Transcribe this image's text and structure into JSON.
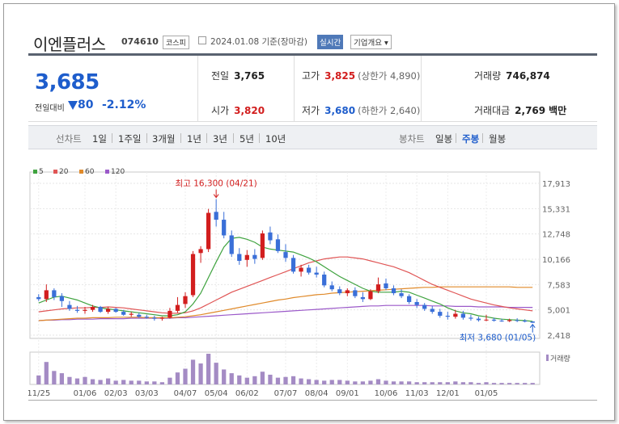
{
  "header": {
    "name": "이엔플러스",
    "code": "074610",
    "market": "코스피",
    "date": "2024.01.08 기준(장마감)",
    "live_label": "실시간",
    "company_label": "기업개요 ▾"
  },
  "summary": {
    "price": "3,685",
    "prev_label": "전일대비",
    "change": "80",
    "change_pct": "-2.12%",
    "prev_close_label": "전일",
    "prev_close": "3,765",
    "high_label": "고가",
    "high": "3,825",
    "upper_limit": "(상한가 4,890)",
    "volume_label": "거래량",
    "volume": "746,874",
    "open_label": "시가",
    "open": "3,820",
    "low_label": "저가",
    "low": "3,680",
    "lower_limit": "(하한가 2,640)",
    "amount_label": "거래대금",
    "amount": "2,769",
    "amount_unit": "백만"
  },
  "tabs": {
    "line_label": "선차트",
    "line_items": [
      "1일",
      "1주일",
      "3개월",
      "1년",
      "3년",
      "5년",
      "10년"
    ],
    "candle_label": "봉차트",
    "candle_items": [
      "일봉",
      "주봉",
      "월봉"
    ],
    "selected_candle": "주봉"
  },
  "colors": {
    "up": "#d21e1e",
    "down": "#3a6fd8",
    "ma5": "#3fa33f",
    "ma20": "#e05555",
    "ma60": "#e08a2a",
    "ma120": "#9b59c9",
    "volume": "#a48bc4"
  },
  "chart_data": {
    "type": "candlestick",
    "legend": [
      {
        "name": "5",
        "color": "#3fa33f"
      },
      {
        "name": "20",
        "color": "#e05555"
      },
      {
        "name": "60",
        "color": "#e08a2a"
      },
      {
        "name": "120",
        "color": "#9b59c9"
      }
    ],
    "y_ticks": [
      "17,913",
      "15,331",
      "12,748",
      "10,166",
      "7,583",
      "5,001",
      "2,418"
    ],
    "ylim": [
      2418,
      17913
    ],
    "x_ticks": [
      "11/25",
      "01/06",
      "02/03",
      "03/03",
      "04/07",
      "05/04",
      "06/02",
      "07/07",
      "08/04",
      "09/01",
      "10/06",
      "11/03",
      "12/01",
      "01/05"
    ],
    "annotation_high": "최고 16,300 (04/21)",
    "annotation_low": "최저 3,680 (01/05)",
    "volume_label": "거래량",
    "candles": [
      [
        6300,
        6600,
        5900,
        6100
      ],
      [
        6100,
        7600,
        5800,
        7000
      ],
      [
        7000,
        7200,
        6000,
        6300
      ],
      [
        6400,
        6700,
        5300,
        5900
      ],
      [
        5500,
        5900,
        4900,
        5100
      ],
      [
        5000,
        5400,
        4700,
        4900
      ],
      [
        4900,
        5300,
        4600,
        5000
      ],
      [
        5000,
        5500,
        4800,
        5300
      ],
      [
        5300,
        5400,
        4700,
        4800
      ],
      [
        4800,
        5300,
        4600,
        5100
      ],
      [
        5100,
        5200,
        4700,
        4800
      ],
      [
        4800,
        5000,
        4400,
        4500
      ],
      [
        4500,
        4800,
        4300,
        4600
      ],
      [
        4500,
        4700,
        4200,
        4300
      ],
      [
        4300,
        4500,
        4100,
        4200
      ],
      [
        4200,
        4400,
        3900,
        4100
      ],
      [
        4100,
        4300,
        3900,
        4200
      ],
      [
        4200,
        5200,
        4100,
        4900
      ],
      [
        4900,
        6300,
        4700,
        5500
      ],
      [
        5600,
        6800,
        5200,
        6400
      ],
      [
        6500,
        11000,
        6300,
        10700
      ],
      [
        10800,
        11500,
        9800,
        11200
      ],
      [
        11200,
        15300,
        10900,
        14900
      ],
      [
        15000,
        16300,
        13500,
        14200
      ],
      [
        14200,
        15000,
        12300,
        12600
      ],
      [
        12600,
        13100,
        10400,
        10700
      ],
      [
        10700,
        11300,
        9600,
        10000
      ],
      [
        10100,
        11100,
        9400,
        10600
      ],
      [
        10600,
        11200,
        9700,
        10200
      ],
      [
        10300,
        13100,
        10100,
        12800
      ],
      [
        12900,
        13500,
        11700,
        12100
      ],
      [
        12200,
        12700,
        10800,
        11000
      ],
      [
        10900,
        11700,
        9900,
        10300
      ],
      [
        10300,
        10600,
        8700,
        8900
      ],
      [
        8900,
        9600,
        8400,
        9300
      ],
      [
        9300,
        9600,
        8600,
        8800
      ],
      [
        8800,
        9400,
        8300,
        8600
      ],
      [
        8600,
        8900,
        7300,
        7500
      ],
      [
        7500,
        7900,
        6900,
        7100
      ],
      [
        7100,
        7400,
        6500,
        6700
      ],
      [
        6700,
        7200,
        6400,
        7000
      ],
      [
        7000,
        7300,
        6200,
        6400
      ],
      [
        6300,
        6800,
        5800,
        6100
      ],
      [
        6100,
        7100,
        6000,
        6900
      ],
      [
        6900,
        8300,
        6700,
        7600
      ],
      [
        7700,
        8200,
        7000,
        7200
      ],
      [
        7200,
        7500,
        6500,
        6700
      ],
      [
        6700,
        7100,
        6200,
        6400
      ],
      [
        6400,
        6600,
        5600,
        5800
      ],
      [
        5800,
        6100,
        5200,
        5500
      ],
      [
        5500,
        5700,
        4900,
        5100
      ],
      [
        5100,
        5400,
        4600,
        4800
      ],
      [
        4800,
        5100,
        4200,
        4400
      ],
      [
        4400,
        4800,
        4000,
        4300
      ],
      [
        4300,
        5000,
        4100,
        4600
      ],
      [
        4600,
        4900,
        4000,
        4200
      ],
      [
        4200,
        4500,
        3900,
        4100
      ],
      [
        4100,
        4300,
        3800,
        3950
      ],
      [
        3950,
        4500,
        3850,
        4000
      ],
      [
        4000,
        4200,
        3800,
        3900
      ],
      [
        3900,
        4100,
        3780,
        3850
      ],
      [
        3850,
        4100,
        3760,
        3950
      ],
      [
        3950,
        4150,
        3750,
        3900
      ],
      [
        3900,
        4050,
        3720,
        3800
      ],
      [
        3820,
        3825,
        3680,
        3685
      ]
    ],
    "volume": [
      1.2,
      3.0,
      1.8,
      1.5,
      1.0,
      0.8,
      1.0,
      0.7,
      0.6,
      0.8,
      0.5,
      0.6,
      0.5,
      0.5,
      0.4,
      0.4,
      0.3,
      0.9,
      1.6,
      2.1,
      3.3,
      2.8,
      4.1,
      2.9,
      2.0,
      1.5,
      1.2,
      0.9,
      1.1,
      1.7,
      1.3,
      0.9,
      1.0,
      1.1,
      0.8,
      0.7,
      0.6,
      0.5,
      0.6,
      0.6,
      0.5,
      0.4,
      0.4,
      0.5,
      0.7,
      0.5,
      0.4,
      0.4,
      0.4,
      0.3,
      0.3,
      0.3,
      0.3,
      0.3,
      0.4,
      0.3,
      0.3,
      0.2,
      0.3,
      0.2,
      0.2,
      0.2,
      0.2,
      0.2,
      0.2
    ],
    "ma5": [
      5700,
      6000,
      6300,
      6400,
      6200,
      6000,
      5700,
      5400,
      5200,
      5100,
      5000,
      4900,
      4800,
      4700,
      4600,
      4500,
      4400,
      4400,
      4500,
      4800,
      5600,
      6700,
      8300,
      9900,
      11400,
      12300,
      12400,
      12200,
      11900,
      11400,
      11200,
      11100,
      11000,
      10900,
      10600,
      10300,
      9900,
      9400,
      8900,
      8400,
      8000,
      7600,
      7200,
      6900,
      6800,
      6800,
      6800,
      6900,
      6800,
      6500,
      6200,
      5900,
      5600,
      5200,
      4900,
      4700,
      4600,
      4400,
      4300,
      4150,
      4050,
      4000,
      3950,
      3900,
      3830
    ],
    "ma20": [
      4800,
      4900,
      5000,
      5100,
      5150,
      5200,
      5200,
      5250,
      5250,
      5300,
      5250,
      5200,
      5100,
      5000,
      4900,
      4800,
      4700,
      4650,
      4650,
      4700,
      4900,
      5200,
      5600,
      6000,
      6400,
      6800,
      7100,
      7400,
      7700,
      8000,
      8300,
      8600,
      8900,
      9200,
      9500,
      9800,
      10000,
      10200,
      10300,
      10400,
      10400,
      10300,
      10200,
      10000,
      9800,
      9600,
      9400,
      9100,
      8800,
      8400,
      8000,
      7600,
      7300,
      7000,
      6700,
      6400,
      6100,
      5900,
      5700,
      5500,
      5350,
      5200,
      5100,
      5000,
      4900
    ],
    "ma60": [
      3900,
      3950,
      4000,
      4050,
      4100,
      4150,
      4150,
      4200,
      4200,
      4200,
      4250,
      4250,
      4250,
      4250,
      4200,
      4200,
      4200,
      4200,
      4250,
      4300,
      4400,
      4500,
      4650,
      4800,
      4950,
      5100,
      5250,
      5400,
      5550,
      5700,
      5850,
      6000,
      6100,
      6250,
      6350,
      6450,
      6550,
      6600,
      6700,
      6750,
      6800,
      6850,
      6900,
      6950,
      7000,
      7050,
      7100,
      7150,
      7200,
      7250,
      7300,
      7300,
      7350,
      7350,
      7350,
      7350,
      7350,
      7350,
      7350,
      7350,
      7350,
      7350,
      7300,
      7300,
      7300
    ],
    "ma120": [
      3900,
      3950,
      3950,
      4000,
      4000,
      4050,
      4050,
      4050,
      4100,
      4100,
      4100,
      4100,
      4150,
      4150,
      4150,
      4150,
      4150,
      4150,
      4200,
      4200,
      4250,
      4300,
      4350,
      4400,
      4450,
      4500,
      4550,
      4600,
      4650,
      4700,
      4750,
      4800,
      4850,
      4900,
      4950,
      5000,
      5050,
      5100,
      5150,
      5200,
      5250,
      5300,
      5350,
      5400,
      5400,
      5450,
      5450,
      5450,
      5450,
      5450,
      5450,
      5400,
      5400,
      5400,
      5350,
      5350,
      5350,
      5300,
      5300,
      5300,
      5300,
      5250,
      5250,
      5250,
      5250
    ]
  }
}
